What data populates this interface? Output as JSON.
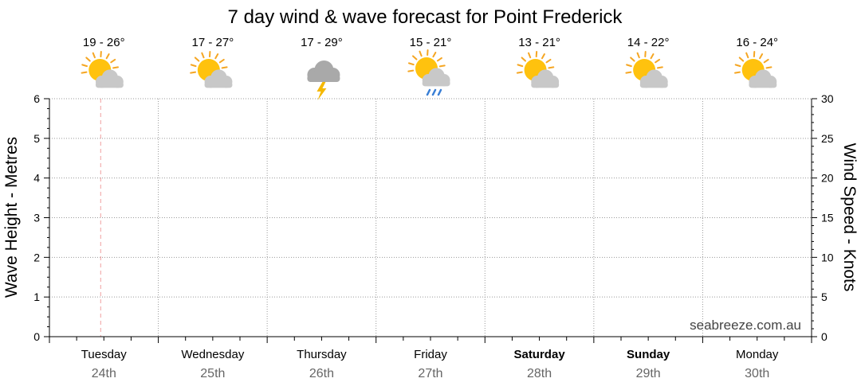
{
  "chart_data": {
    "type": "line",
    "title": "7 day wind & wave forecast for Point Frederick",
    "ylabel_left": "Wave Height - Metres",
    "ylabel_right": "Wind Speed - Knots",
    "ylim_left": [
      0,
      6
    ],
    "ylim_right": [
      0,
      30
    ],
    "yticks_left": [
      "0",
      "1",
      "2",
      "3",
      "4",
      "5",
      "6"
    ],
    "yticks_right": [
      "0",
      "5",
      "10",
      "15",
      "20",
      "25",
      "30"
    ],
    "grid": true,
    "days": [
      {
        "name": "Tuesday",
        "date": "24th",
        "temp": "19 - 26°",
        "icon": "partly-cloudy-icon",
        "bold": false
      },
      {
        "name": "Wednesday",
        "date": "25th",
        "temp": "17 - 27°",
        "icon": "partly-cloudy-icon",
        "bold": false
      },
      {
        "name": "Thursday",
        "date": "26th",
        "temp": "17 - 29°",
        "icon": "thunderstorm-icon",
        "bold": false
      },
      {
        "name": "Friday",
        "date": "27th",
        "temp": "15 - 21°",
        "icon": "shower-icon",
        "bold": false
      },
      {
        "name": "Saturday",
        "date": "28th",
        "temp": "13 - 21°",
        "icon": "partly-cloudy-icon",
        "bold": true
      },
      {
        "name": "Sunday",
        "date": "29th",
        "temp": "14 - 22°",
        "icon": "partly-cloudy-icon",
        "bold": true
      },
      {
        "name": "Monday",
        "date": "30th",
        "temp": "16 - 24°",
        "icon": "partly-cloudy-icon",
        "bold": false
      }
    ],
    "series": [],
    "current_time_marker_day": 0,
    "credit": "seabreeze.com.au"
  },
  "colors": {
    "sun": "#ffc20e",
    "sun_ray": "#f5a623",
    "cloud": "#c8c8c8",
    "storm_cloud": "#a9a9a9",
    "lightning": "#f5b800",
    "rain": "#3a7fd5",
    "grid": "#999999",
    "now_marker": "#f0a0a0"
  }
}
